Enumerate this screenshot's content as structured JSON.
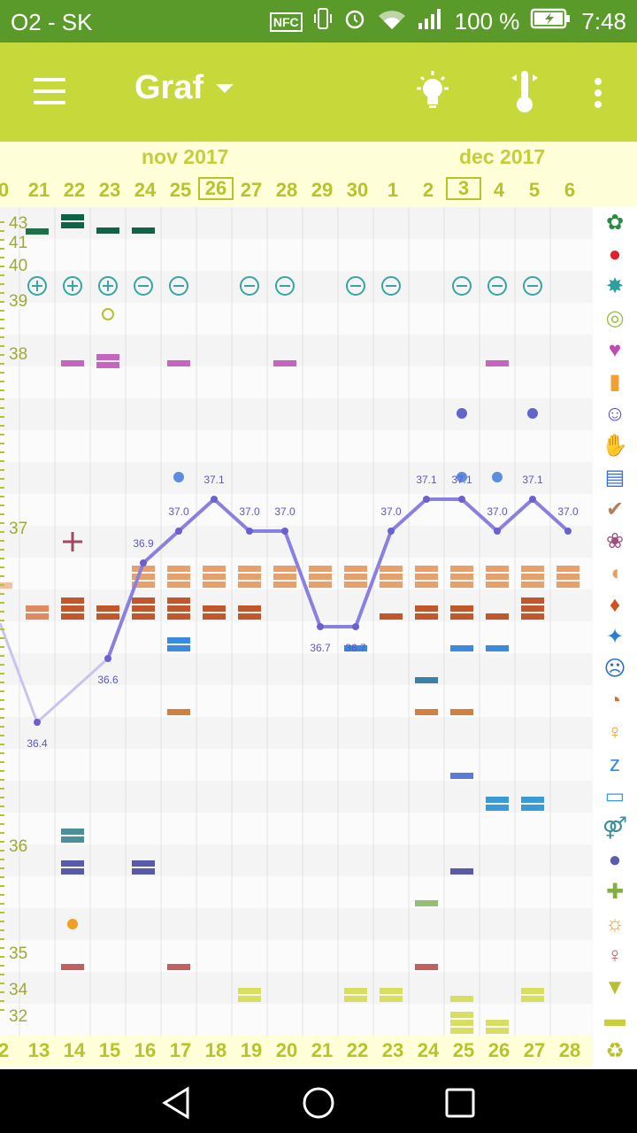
{
  "status": {
    "carrier": "O2 - SK",
    "nfc": "NFC",
    "battery": "100 %",
    "time": "7:48"
  },
  "app_bar": {
    "title": "Graf"
  },
  "months": {
    "left": "nov 2017",
    "right": "dec 2017"
  },
  "days_top": [
    "0",
    "21",
    "22",
    "23",
    "24",
    "25",
    "26",
    "27",
    "28",
    "29",
    "30",
    "1",
    "2",
    "3",
    "4",
    "5",
    "6"
  ],
  "days_bottom": [
    "2",
    "13",
    "14",
    "15",
    "16",
    "17",
    "18",
    "19",
    "20",
    "21",
    "22",
    "23",
    "24",
    "25",
    "26",
    "27",
    "28"
  ],
  "today_index": [
    6,
    13
  ],
  "y_labels": [
    "43",
    "41",
    "40",
    "39",
    "38",
    "37",
    "36",
    "35",
    "34",
    "32"
  ],
  "temperature_labels": [
    "36.4",
    "36.6",
    "36.9",
    "37.0",
    "37.1",
    "37.0",
    "37.0",
    "36.7",
    "36.7",
    "37.0",
    "37.1",
    "37.1",
    "37.0",
    "37.1",
    "37.0"
  ],
  "colors": {
    "status_bar": "#5a9a2a",
    "app_bar": "#c6d83a",
    "label_yellow": "#b7c32a",
    "temp_line": "#8a80e0"
  },
  "side_icons": [
    "flower-icon",
    "drop-icon",
    "splash-icon",
    "rings-icon",
    "heart-icon",
    "pill-bottle-icon",
    "smile-icon",
    "hand-icon",
    "document-icon",
    "pregnancy-check-icon",
    "flower-check-icon",
    "leg-icon",
    "drop-outline-icon",
    "vomit-icon",
    "angry-face-icon",
    "head-pain-icon",
    "woman-icon",
    "sleep-icon",
    "cake-icon",
    "couple-icon",
    "balloon-icon",
    "first-aid-icon",
    "sun-alert-icon",
    "pregnant-icon",
    "pizza-icon",
    "sofa-icon",
    "recycle-icon"
  ],
  "chart_data": {
    "type": "line",
    "x": [
      "21",
      "22",
      "23",
      "24",
      "25",
      "26",
      "27",
      "28",
      "29",
      "30",
      "1",
      "2",
      "3",
      "4",
      "5",
      "6"
    ],
    "series": [
      {
        "values": [
          36.4,
          null,
          36.6,
          36.9,
          37.0,
          37.1,
          37.0,
          37.0,
          36.7,
          36.7,
          37.0,
          37.1,
          37.1,
          37.0,
          37.1,
          37.0
        ]
      }
    ]
  }
}
